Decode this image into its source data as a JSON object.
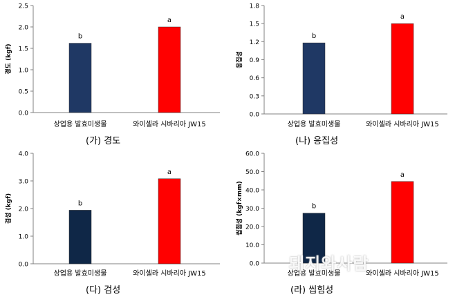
{
  "chart_data": [
    {
      "type": "bar",
      "categories": [
        "상업용 발효미생물",
        "와이셀라 시바리아 JW15"
      ],
      "values": [
        1.62,
        2.0
      ],
      "sig_labels": [
        "b",
        "a"
      ],
      "colors": [
        "#1f3864",
        "#ff0000"
      ],
      "ylabel": "경도 (kgf)",
      "ylim": [
        0,
        2.5
      ],
      "yticks": [
        "0.0",
        "0.5",
        "1.0",
        "1.5",
        "2.0",
        "2.5"
      ],
      "caption": "(가) 경도"
    },
    {
      "type": "bar",
      "categories": [
        "상업용 발효미생물",
        "와이셀라 시바리아 JW15"
      ],
      "values": [
        1.18,
        1.5
      ],
      "sig_labels": [
        "b",
        "a"
      ],
      "colors": [
        "#1f3864",
        "#ff0000"
      ],
      "ylabel": "응집성",
      "ylim": [
        0,
        1.8
      ],
      "yticks": [
        "0.0",
        "0.3",
        "0.6",
        "0.9",
        "1.2",
        "1.5",
        "1.8"
      ],
      "caption": "(나) 응집성"
    },
    {
      "type": "bar",
      "categories": [
        "상업용 발효미생물",
        "와이셀라 시바리아 JW15"
      ],
      "values": [
        1.94,
        3.08
      ],
      "sig_labels": [
        "b",
        "a"
      ],
      "colors": [
        "#0f2747",
        "#ff0000"
      ],
      "ylabel": "검성 (kgf)",
      "ylim": [
        0,
        4.0
      ],
      "yticks": [
        "0.0",
        "1.0",
        "2.0",
        "3.0",
        "4.0"
      ],
      "caption": "(다) 검성"
    },
    {
      "type": "bar",
      "categories": [
        "상업용 발효미생물",
        "와이셀라 시바리아 JW15"
      ],
      "values": [
        27.3,
        44.6
      ],
      "sig_labels": [
        "b",
        "a"
      ],
      "colors": [
        "#0f2747",
        "#ff0000"
      ],
      "ylabel": "씹힘성 (kgf×mm)",
      "ylim": [
        0,
        60
      ],
      "yticks": [
        "0.0",
        "10.0",
        "20.0",
        "30.0",
        "40.0",
        "50.0",
        "60.0"
      ],
      "caption": "(라) 씹힘성"
    }
  ],
  "watermark": "돼지와사람"
}
